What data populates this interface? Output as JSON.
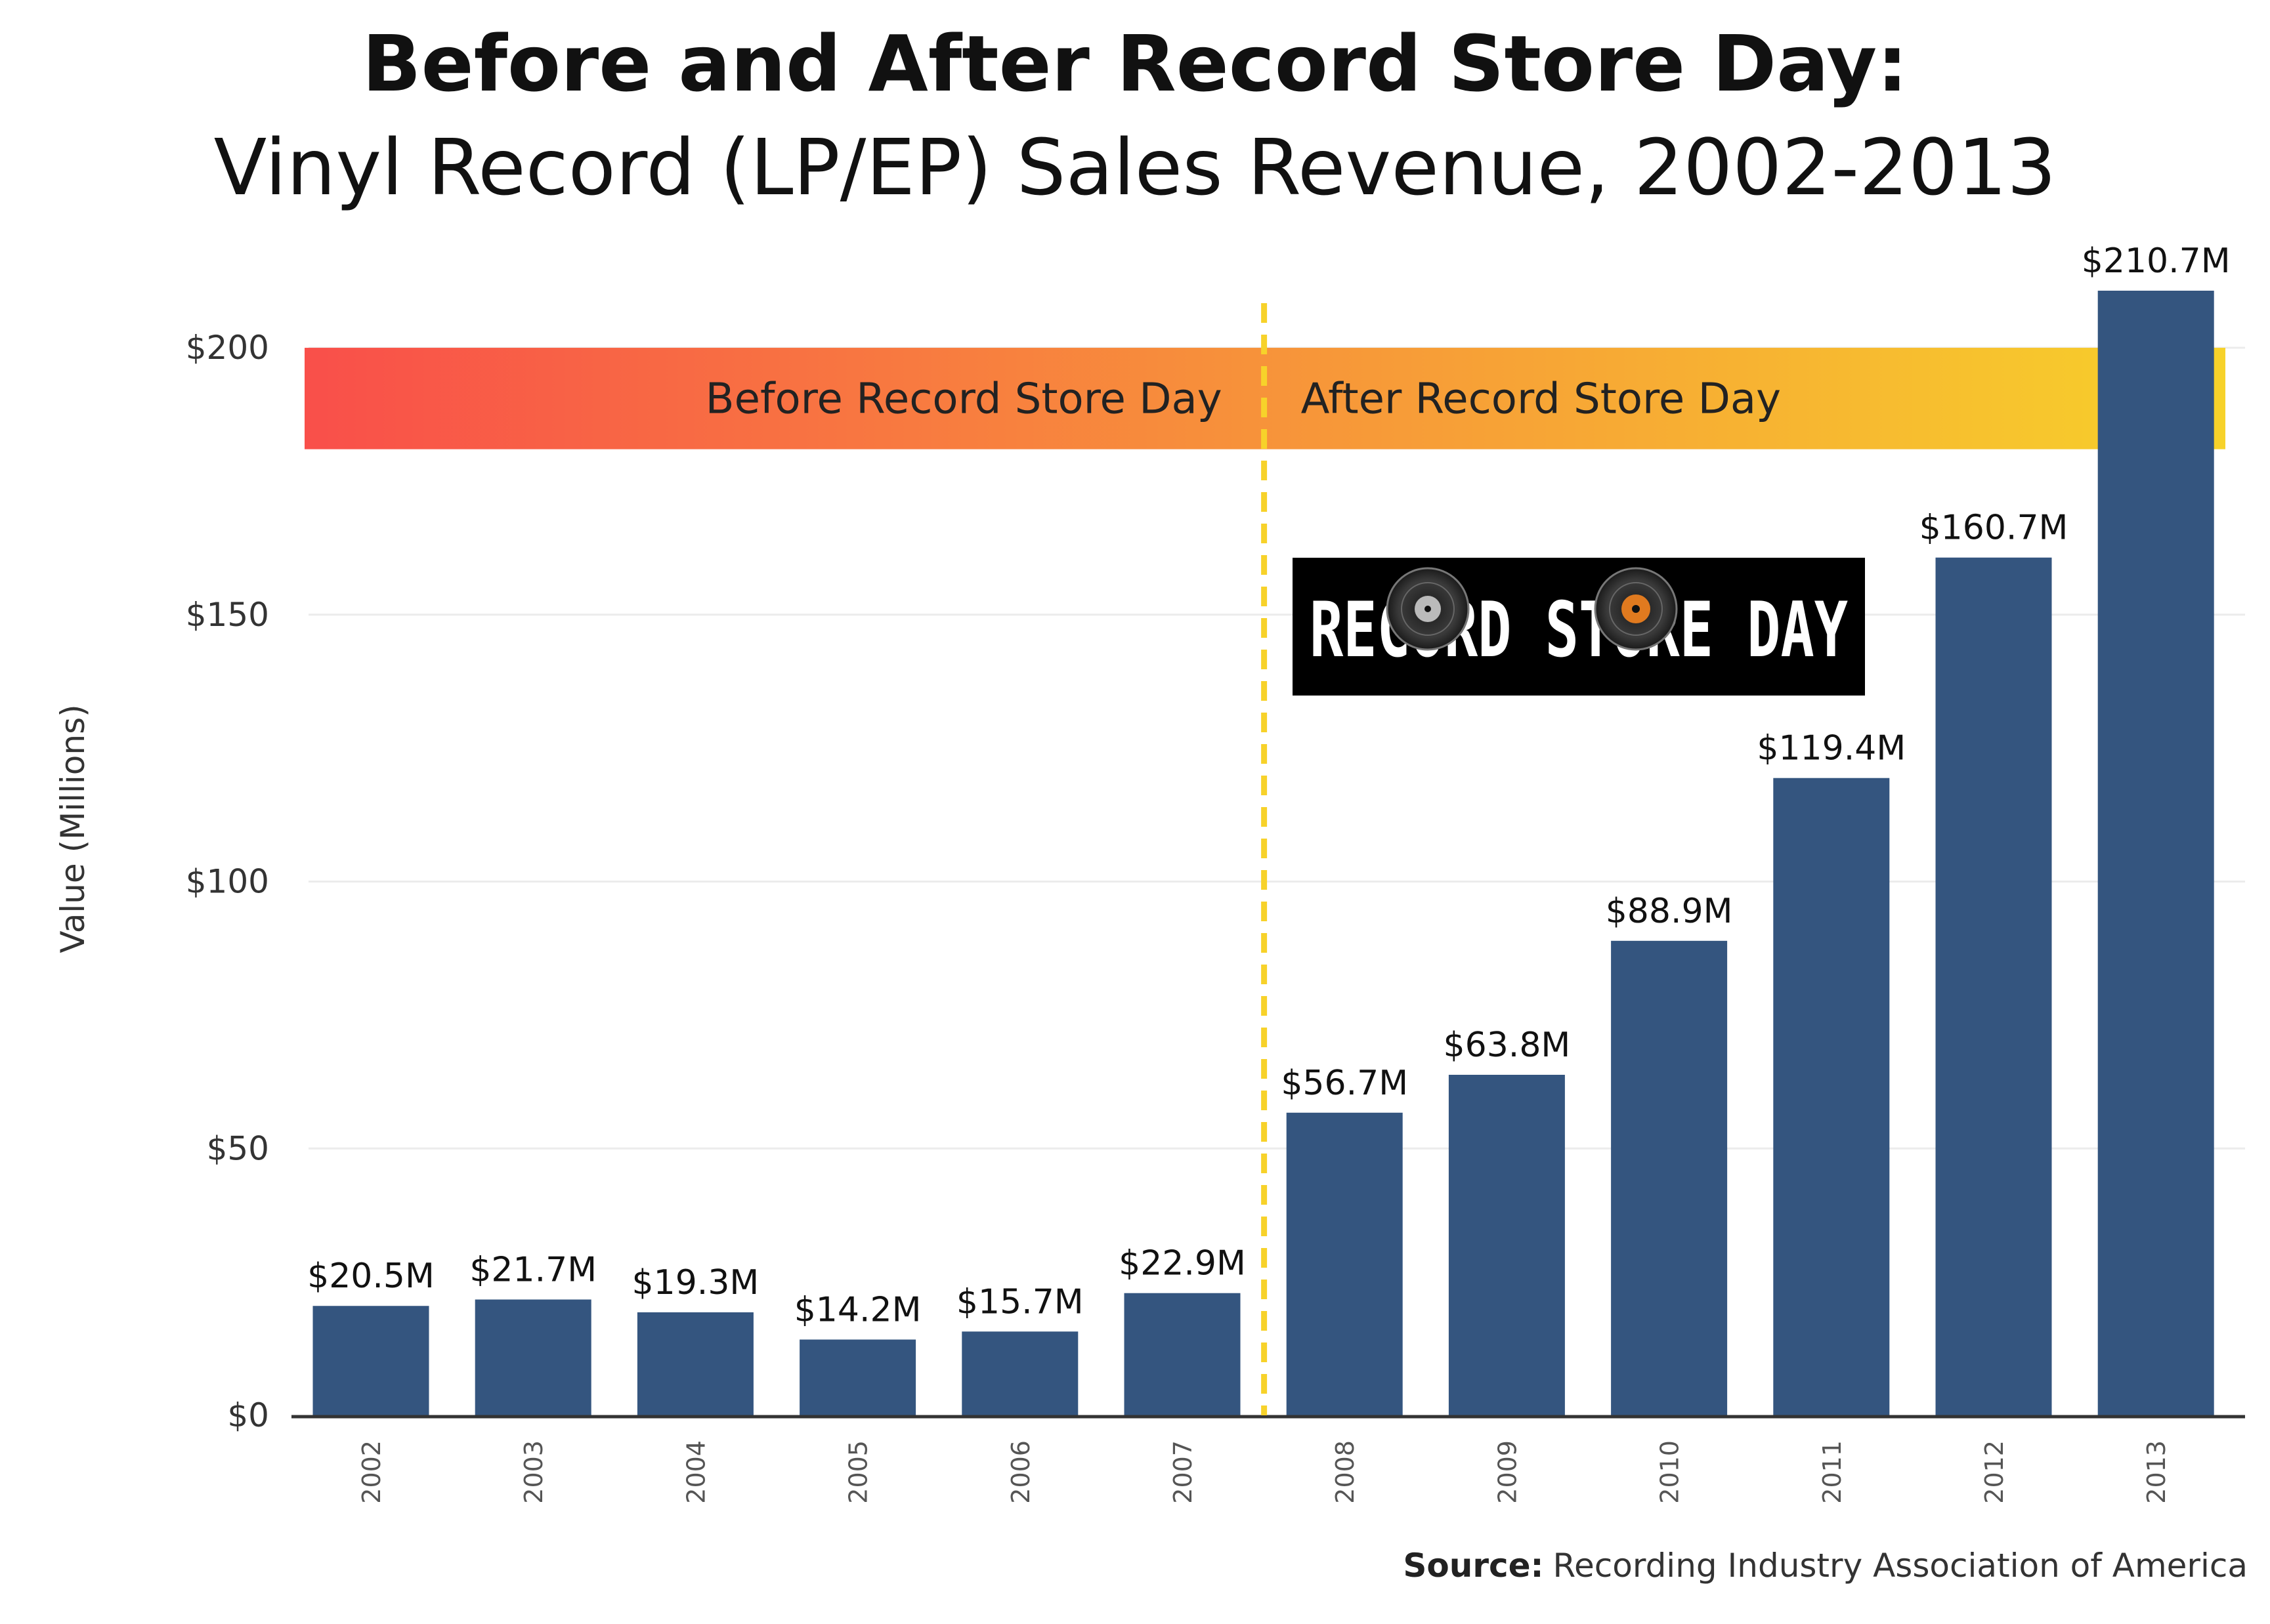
{
  "chart_data": {
    "type": "bar",
    "title": "Before and After Record Store Day:",
    "subtitle": "Vinyl Record (LP/EP) Sales Revenue, 2002-2013",
    "xlabel": "",
    "ylabel": "Value (Millions)",
    "categories": [
      "2002",
      "2003",
      "2004",
      "2005",
      "2006",
      "2007",
      "2008",
      "2009",
      "2010",
      "2011",
      "2012",
      "2013"
    ],
    "values": [
      20.5,
      21.7,
      19.3,
      14.2,
      15.7,
      22.9,
      56.7,
      63.8,
      88.9,
      119.4,
      160.7,
      210.7
    ],
    "data_labels": [
      "$20.5M",
      "$21.7M",
      "$19.3M",
      "$14.2M",
      "$15.7M",
      "$22.9M",
      "$56.7M",
      "$63.8M",
      "$88.9M",
      "$119.4M",
      "$160.7M",
      "$210.7M"
    ],
    "ylim": [
      0,
      210.7
    ],
    "yticks": [
      0,
      50,
      100,
      150,
      200
    ],
    "ytick_labels": [
      "$0",
      "$50",
      "$100",
      "$150",
      "$200"
    ],
    "grid": true,
    "bar_color": "#34557f",
    "band": {
      "before_label": "Before Record Store Day",
      "after_label": "After Record Store Day",
      "y_range": [
        181,
        200
      ],
      "gradient_start": "#f94f4a",
      "gradient_mid": "#f7933a",
      "gradient_end": "#f7d22a"
    },
    "divider": {
      "between": [
        "2007",
        "2008"
      ],
      "color": "#f7d22a",
      "style": "dashed"
    },
    "logo": {
      "text": "RECORD STORE DAY",
      "icon": "vinyl-record-icon"
    },
    "source_label": "Source:",
    "source_text": "Recording Industry Association of America"
  }
}
